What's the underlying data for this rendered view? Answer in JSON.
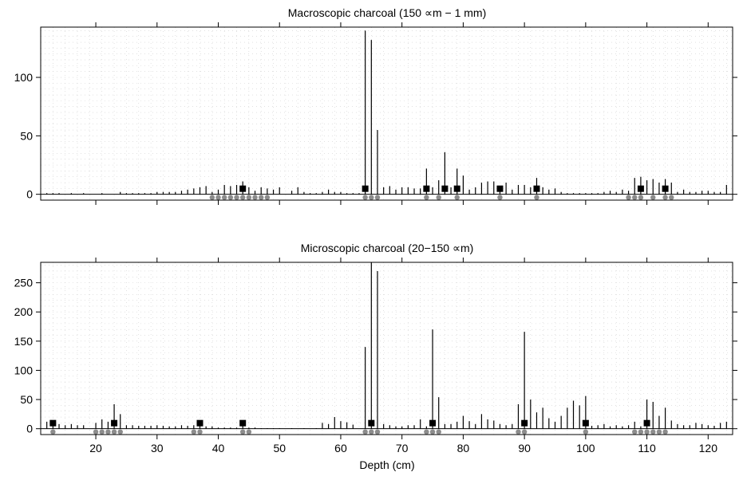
{
  "chart_data": [
    {
      "type": "bar",
      "title": "Macroscopic charcoal (150 ∝m − 1 mm)",
      "xlabel": "",
      "ylabel": "",
      "xlim": [
        11,
        124
      ],
      "ylim": [
        -5,
        143
      ],
      "x_ticks": [
        20,
        30,
        40,
        50,
        60,
        70,
        80,
        90,
        100,
        110,
        120
      ],
      "x_tick_labels": [],
      "y_ticks": [
        0,
        50,
        100
      ],
      "y_tick_labels": [
        "0",
        "50",
        "100"
      ],
      "grid": true,
      "series": [
        {
          "values_x": [
            12,
            13,
            14,
            16,
            18,
            21,
            24,
            25,
            26,
            27,
            28,
            29,
            30,
            31,
            32,
            33,
            34,
            35,
            36,
            37,
            38,
            39,
            40,
            41,
            42,
            43,
            44,
            45,
            46,
            47,
            48,
            49,
            50,
            52,
            53,
            54,
            55,
            56,
            57,
            58,
            59,
            60,
            61,
            62,
            63,
            64,
            65,
            66,
            67,
            68,
            69,
            70,
            71,
            72,
            73,
            74,
            75,
            76,
            77,
            78,
            79,
            80,
            81,
            82,
            83,
            84,
            85,
            86,
            87,
            88,
            89,
            90,
            91,
            92,
            93,
            94,
            95,
            96,
            97,
            98,
            99,
            100,
            101,
            102,
            103,
            104,
            105,
            106,
            107,
            108,
            109,
            110,
            111,
            112,
            113,
            114,
            115,
            116,
            117,
            118,
            119,
            120,
            121,
            122,
            123
          ],
          "values_y": [
            1,
            1,
            1,
            1,
            1,
            1,
            2,
            1,
            1,
            1,
            1,
            1,
            2,
            2,
            2,
            2,
            3,
            4,
            5,
            6,
            7,
            2,
            4,
            8,
            7,
            8,
            11,
            6,
            3,
            6,
            5,
            4,
            6,
            3,
            6,
            2,
            1,
            1,
            2,
            4,
            2,
            2,
            1,
            1,
            1,
            140,
            132,
            55,
            6,
            7,
            4,
            6,
            6,
            5,
            5,
            22,
            6,
            12,
            36,
            6,
            22,
            16,
            4,
            6,
            10,
            11,
            11,
            6,
            10,
            4,
            8,
            8,
            6,
            14,
            6,
            4,
            5,
            2,
            1,
            1,
            1,
            1,
            1,
            1,
            2,
            3,
            2,
            4,
            3,
            14,
            15,
            12,
            13,
            10,
            13,
            10,
            2,
            4,
            2,
            2,
            3,
            3,
            2,
            2,
            8
          ]
        }
      ],
      "square_markers_x": [
        44,
        64,
        74,
        77,
        79,
        86,
        92,
        109,
        113
      ],
      "dot_markers_x": [
        39,
        40,
        41,
        42,
        43,
        44,
        45,
        46,
        47,
        48,
        64,
        65,
        66,
        74,
        76,
        79,
        86,
        92,
        107,
        108,
        109,
        111,
        113,
        114
      ]
    },
    {
      "type": "bar",
      "title": "Microscopic charcoal (20−150 ∝m)",
      "xlabel": "Depth (cm)",
      "ylabel": "",
      "xlim": [
        11,
        124
      ],
      "ylim": [
        -10,
        285
      ],
      "x_ticks": [
        20,
        30,
        40,
        50,
        60,
        70,
        80,
        90,
        100,
        110,
        120
      ],
      "x_tick_labels": [
        "20",
        "30",
        "40",
        "50",
        "60",
        "70",
        "80",
        "90",
        "100",
        "110",
        "120"
      ],
      "y_ticks": [
        0,
        50,
        100,
        150,
        200,
        250
      ],
      "y_tick_labels": [
        "0",
        "50",
        "100",
        "150",
        "200",
        "250"
      ],
      "grid": true,
      "series": [
        {
          "values_x": [
            12,
            13,
            14,
            15,
            16,
            17,
            18,
            20,
            21,
            22,
            23,
            24,
            25,
            26,
            27,
            28,
            29,
            30,
            31,
            32,
            33,
            34,
            35,
            36,
            37,
            38,
            39,
            40,
            41,
            42,
            43,
            44,
            45,
            46,
            47,
            48,
            49,
            50,
            52,
            54,
            56,
            57,
            58,
            59,
            60,
            61,
            62,
            64,
            65,
            66,
            67,
            68,
            69,
            70,
            71,
            72,
            73,
            74,
            75,
            76,
            77,
            78,
            79,
            80,
            81,
            82,
            83,
            84,
            85,
            86,
            87,
            88,
            89,
            90,
            91,
            92,
            93,
            94,
            95,
            96,
            97,
            98,
            99,
            100,
            101,
            102,
            103,
            104,
            105,
            106,
            107,
            108,
            109,
            110,
            111,
            112,
            113,
            114,
            115,
            116,
            117,
            118,
            119,
            120,
            121,
            122,
            123
          ],
          "values_y": [
            12,
            5,
            8,
            6,
            8,
            6,
            6,
            10,
            16,
            12,
            42,
            25,
            6,
            6,
            5,
            5,
            5,
            6,
            5,
            4,
            4,
            6,
            5,
            6,
            5,
            4,
            4,
            2,
            2,
            2,
            2,
            5,
            2,
            2,
            1,
            1,
            1,
            1,
            1,
            1,
            1,
            10,
            8,
            20,
            13,
            11,
            7,
            140,
            290,
            270,
            8,
            6,
            4,
            4,
            6,
            6,
            16,
            4,
            170,
            54,
            8,
            8,
            12,
            22,
            13,
            8,
            25,
            16,
            14,
            8,
            6,
            8,
            42,
            166,
            50,
            28,
            36,
            18,
            12,
            22,
            36,
            48,
            40,
            56,
            5,
            6,
            8,
            4,
            6,
            4,
            6,
            12,
            4,
            50,
            46,
            22,
            36,
            14,
            8,
            6,
            6,
            10,
            8,
            6,
            5,
            10,
            12
          ]
        }
      ],
      "square_markers_x": [
        13,
        23,
        37,
        44,
        65,
        75,
        90,
        100,
        110
      ],
      "dot_markers_x": [
        13,
        20,
        21,
        22,
        23,
        24,
        36,
        37,
        44,
        45,
        64,
        65,
        66,
        74,
        75,
        76,
        89,
        90,
        100,
        108,
        109,
        110,
        111,
        112,
        113
      ]
    }
  ]
}
